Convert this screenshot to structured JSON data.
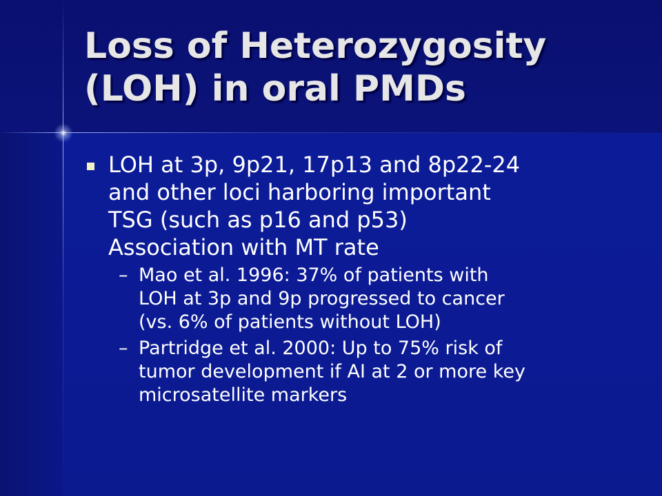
{
  "slide": {
    "title_line1": "Loss of Heterozygosity",
    "title_line2": "(LOH) in oral PMDs",
    "bullet1": {
      "lines": [
        "LOH at 3p, 9p21, 17p13 and 8p22-24",
        "and other loci harboring important",
        "TSG (such as p16 and p53)",
        "Association with MT rate"
      ]
    },
    "sub_bullets": [
      {
        "dash": "–",
        "lines": [
          "Mao et al. 1996: 37% of patients with",
          "LOH at 3p and 9p progressed to cancer",
          "(vs. 6% of patients without LOH)"
        ]
      },
      {
        "dash": "–",
        "lines": [
          "Partridge et al. 2000: Up to 75% risk of",
          "tumor development if AI at 2 or more key",
          "microsatellite markers"
        ]
      }
    ],
    "colors": {
      "background": "#0c1a8a",
      "title_text": "#e6e6e6",
      "body_text": "#ffffff",
      "bullet_square": "#f2f2c8"
    }
  }
}
